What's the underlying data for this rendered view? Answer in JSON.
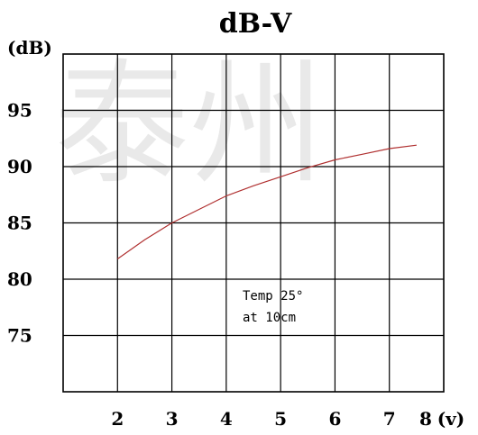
{
  "chart_data": {
    "type": "line",
    "title": "dB-V",
    "ylabel": "(dB)",
    "xlabel": "",
    "x_unit_label": "(v)",
    "xlim": [
      1,
      8
    ],
    "ylim": [
      70,
      100
    ],
    "x_ticks": [
      2,
      3,
      4,
      5,
      6,
      7,
      8
    ],
    "y_ticks": [
      75,
      80,
      85,
      90,
      95
    ],
    "grid": true,
    "annotation": [
      "Temp 25°",
      "at 10cm"
    ],
    "series": [
      {
        "color": "#b03030",
        "x": [
          2.0,
          2.5,
          3.0,
          3.5,
          4.0,
          4.5,
          5.0,
          5.5,
          6.0,
          6.5,
          7.0,
          7.5
        ],
        "y": [
          81.8,
          83.5,
          85.0,
          86.2,
          87.4,
          88.3,
          89.1,
          89.9,
          90.6,
          91.1,
          91.6,
          91.9
        ]
      }
    ]
  },
  "watermark": "泰州"
}
